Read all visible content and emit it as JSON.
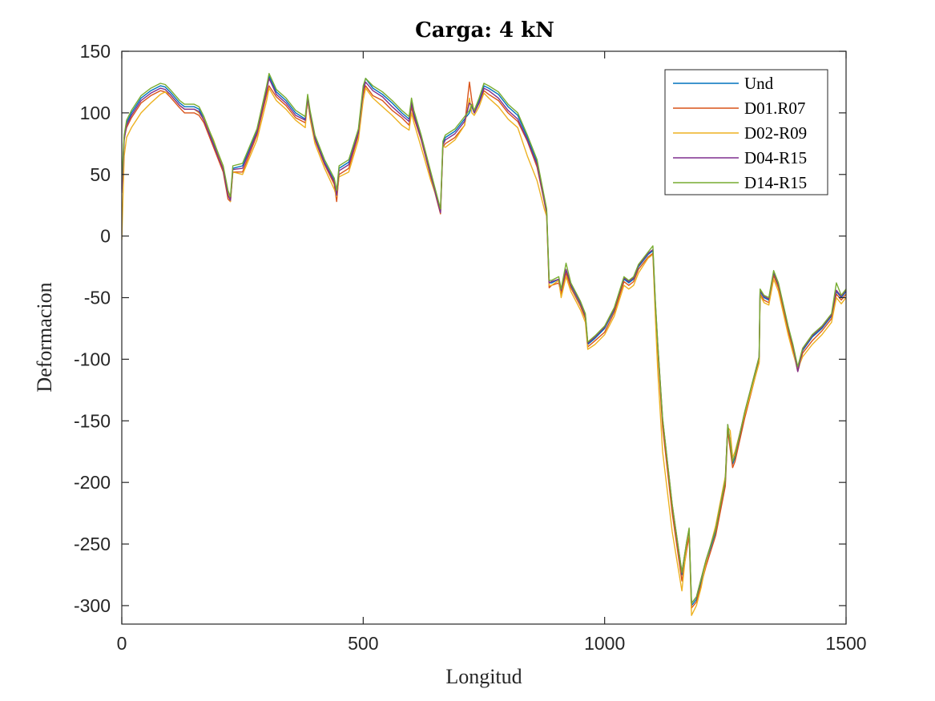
{
  "chart_data": {
    "type": "line",
    "title": "Carga: 4 kN",
    "xlabel": "Longitud",
    "ylabel": "Deformacion",
    "xlim": [
      0,
      1500
    ],
    "ylim": [
      -315,
      150
    ],
    "xticks": [
      0,
      500,
      1000,
      1500
    ],
    "yticks": [
      150,
      100,
      50,
      0,
      -50,
      -100,
      -150,
      -200,
      -250,
      -300
    ],
    "xtick_labels": [
      "0",
      "500",
      "1000",
      "1500"
    ],
    "ytick_labels": [
      "150",
      "100",
      "50",
      "0",
      "-50",
      "-100",
      "-150",
      "-200",
      "-250",
      "-300"
    ],
    "grid": false,
    "legend_position": "top-right",
    "base_x": [
      0,
      5,
      10,
      20,
      40,
      60,
      80,
      90,
      100,
      120,
      130,
      150,
      160,
      170,
      190,
      210,
      220,
      225,
      230,
      250,
      280,
      300,
      305,
      320,
      340,
      360,
      380,
      385,
      390,
      400,
      420,
      440,
      445,
      450,
      470,
      490,
      500,
      505,
      520,
      540,
      560,
      580,
      595,
      600,
      605,
      620,
      640,
      660,
      665,
      670,
      690,
      710,
      720,
      725,
      730,
      740,
      750,
      760,
      780,
      800,
      820,
      840,
      860,
      875,
      880,
      885,
      890,
      905,
      910,
      920,
      930,
      950,
      960,
      965,
      980,
      1000,
      1020,
      1040,
      1050,
      1060,
      1070,
      1090,
      1100,
      1105,
      1110,
      1120,
      1140,
      1160,
      1170,
      1175,
      1180,
      1190,
      1200,
      1210,
      1230,
      1250,
      1255,
      1260,
      1265,
      1270,
      1290,
      1320,
      1322,
      1330,
      1340,
      1350,
      1360,
      1380,
      1390,
      1400,
      1410,
      1430,
      1450,
      1470,
      1480,
      1490,
      1500
    ],
    "series": [
      {
        "name": "Und",
        "color": "#0072BD",
        "values": [
          40,
          80,
          92,
          100,
          112,
          118,
          122,
          121,
          117,
          108,
          105,
          105,
          103,
          95,
          75,
          55,
          35,
          30,
          55,
          57,
          85,
          120,
          130,
          117,
          110,
          100,
          95,
          113,
          100,
          80,
          60,
          45,
          35,
          55,
          60,
          85,
          120,
          128,
          120,
          115,
          108,
          100,
          95,
          110,
          100,
          80,
          50,
          20,
          75,
          80,
          85,
          95,
          100,
          105,
          100,
          110,
          122,
          120,
          115,
          105,
          98,
          80,
          60,
          30,
          20,
          -38,
          -38,
          -35,
          -45,
          -28,
          -40,
          -55,
          -65,
          -88,
          -83,
          -75,
          -60,
          -35,
          -38,
          -35,
          -25,
          -15,
          -12,
          -55,
          -90,
          -150,
          -220,
          -275,
          -250,
          -240,
          -300,
          -295,
          -280,
          -265,
          -240,
          -200,
          -155,
          -170,
          -185,
          -180,
          -145,
          -100,
          -45,
          -50,
          -52,
          -30,
          -40,
          -75,
          -90,
          -108,
          -93,
          -82,
          -75,
          -65,
          -45,
          -50,
          -45
        ]
      },
      {
        "name": "D01.R07",
        "color": "#D95319",
        "values": [
          38,
          80,
          88,
          96,
          108,
          114,
          118,
          117,
          113,
          104,
          100,
          100,
          98,
          92,
          72,
          52,
          30,
          28,
          52,
          52,
          82,
          115,
          122,
          113,
          106,
          96,
          92,
          110,
          97,
          78,
          58,
          42,
          28,
          50,
          55,
          82,
          115,
          122,
          114,
          110,
          102,
          96,
          90,
          105,
          96,
          78,
          48,
          18,
          72,
          75,
          80,
          90,
          125,
          110,
          100,
          108,
          118,
          115,
          110,
          100,
          93,
          77,
          56,
          28,
          18,
          -42,
          -40,
          -38,
          -47,
          -30,
          -42,
          -57,
          -67,
          -90,
          -85,
          -78,
          -62,
          -37,
          -40,
          -37,
          -27,
          -17,
          -14,
          -57,
          -93,
          -155,
          -225,
          -280,
          -255,
          -243,
          -302,
          -297,
          -283,
          -268,
          -243,
          -203,
          -158,
          -173,
          -188,
          -183,
          -148,
          -102,
          -47,
          -52,
          -54,
          -32,
          -42,
          -77,
          -92,
          -110,
          -95,
          -85,
          -77,
          -67,
          -47,
          -52,
          -47
        ]
      },
      {
        "name": "D02-R09",
        "color": "#EDB120",
        "values": [
          -3,
          65,
          80,
          88,
          100,
          108,
          115,
          117,
          115,
          106,
          103,
          103,
          100,
          95,
          78,
          55,
          35,
          28,
          52,
          50,
          78,
          110,
          120,
          110,
          103,
          94,
          88,
          112,
          95,
          75,
          55,
          38,
          32,
          48,
          52,
          78,
          110,
          120,
          112,
          105,
          98,
          90,
          86,
          100,
          92,
          72,
          45,
          22,
          73,
          72,
          78,
          90,
          112,
          100,
          98,
          105,
          116,
          112,
          105,
          95,
          88,
          65,
          45,
          22,
          16,
          -40,
          -40,
          -36,
          -50,
          -33,
          -45,
          -60,
          -70,
          -92,
          -88,
          -80,
          -65,
          -40,
          -43,
          -40,
          -30,
          -18,
          -15,
          -65,
          -110,
          -175,
          -240,
          -288,
          -250,
          -240,
          -308,
          -300,
          -285,
          -265,
          -235,
          -195,
          -155,
          -158,
          -180,
          -175,
          -145,
          -103,
          -48,
          -54,
          -56,
          -35,
          -45,
          -80,
          -95,
          -108,
          -98,
          -88,
          -80,
          -70,
          -50,
          -55,
          -50
        ]
      },
      {
        "name": "D04-R15",
        "color": "#7E2F8E",
        "values": [
          35,
          78,
          90,
          98,
          110,
          116,
          120,
          119,
          115,
          106,
          103,
          103,
          101,
          94,
          74,
          54,
          33,
          29,
          54,
          55,
          84,
          118,
          128,
          115,
          108,
          98,
          94,
          112,
          99,
          79,
          59,
          44,
          33,
          53,
          58,
          84,
          118,
          125,
          118,
          113,
          105,
          98,
          93,
          108,
          98,
          79,
          49,
          19,
          74,
          78,
          83,
          93,
          108,
          106,
          100,
          108,
          120,
          118,
          112,
          102,
          95,
          78,
          58,
          29,
          19,
          -38,
          -37,
          -35,
          -44,
          -27,
          -39,
          -54,
          -64,
          -87,
          -82,
          -74,
          -59,
          -34,
          -37,
          -34,
          -24,
          -14,
          -11,
          -53,
          -88,
          -148,
          -218,
          -273,
          -248,
          -238,
          -298,
          -293,
          -278,
          -263,
          -238,
          -198,
          -153,
          -168,
          -183,
          -178,
          -143,
          -98,
          -44,
          -49,
          -51,
          -29,
          -39,
          -74,
          -89,
          -110,
          -92,
          -81,
          -74,
          -64,
          -44,
          -49,
          -44
        ]
      },
      {
        "name": "D14-R15",
        "color": "#77AC30",
        "values": [
          45,
          82,
          94,
          102,
          114,
          120,
          124,
          123,
          119,
          110,
          107,
          107,
          105,
          97,
          77,
          57,
          37,
          32,
          57,
          59,
          87,
          122,
          132,
          119,
          112,
          102,
          97,
          115,
          102,
          82,
          62,
          47,
          37,
          57,
          62,
          87,
          122,
          128,
          122,
          117,
          110,
          102,
          97,
          112,
          102,
          82,
          52,
          22,
          77,
          82,
          87,
          97,
          102,
          107,
          102,
          112,
          124,
          122,
          117,
          107,
          100,
          82,
          62,
          32,
          22,
          -36,
          -36,
          -33,
          -43,
          -22,
          -38,
          -53,
          -63,
          -86,
          -81,
          -73,
          -58,
          -33,
          -36,
          -33,
          -23,
          -13,
          -8,
          -52,
          -88,
          -148,
          -218,
          -273,
          -248,
          -237,
          -298,
          -293,
          -278,
          -263,
          -238,
          -198,
          -153,
          -168,
          -183,
          -178,
          -143,
          -98,
          -43,
          -48,
          -50,
          -28,
          -38,
          -73,
          -88,
          -106,
          -91,
          -80,
          -73,
          -63,
          -38,
          -48,
          -43
        ]
      }
    ]
  }
}
